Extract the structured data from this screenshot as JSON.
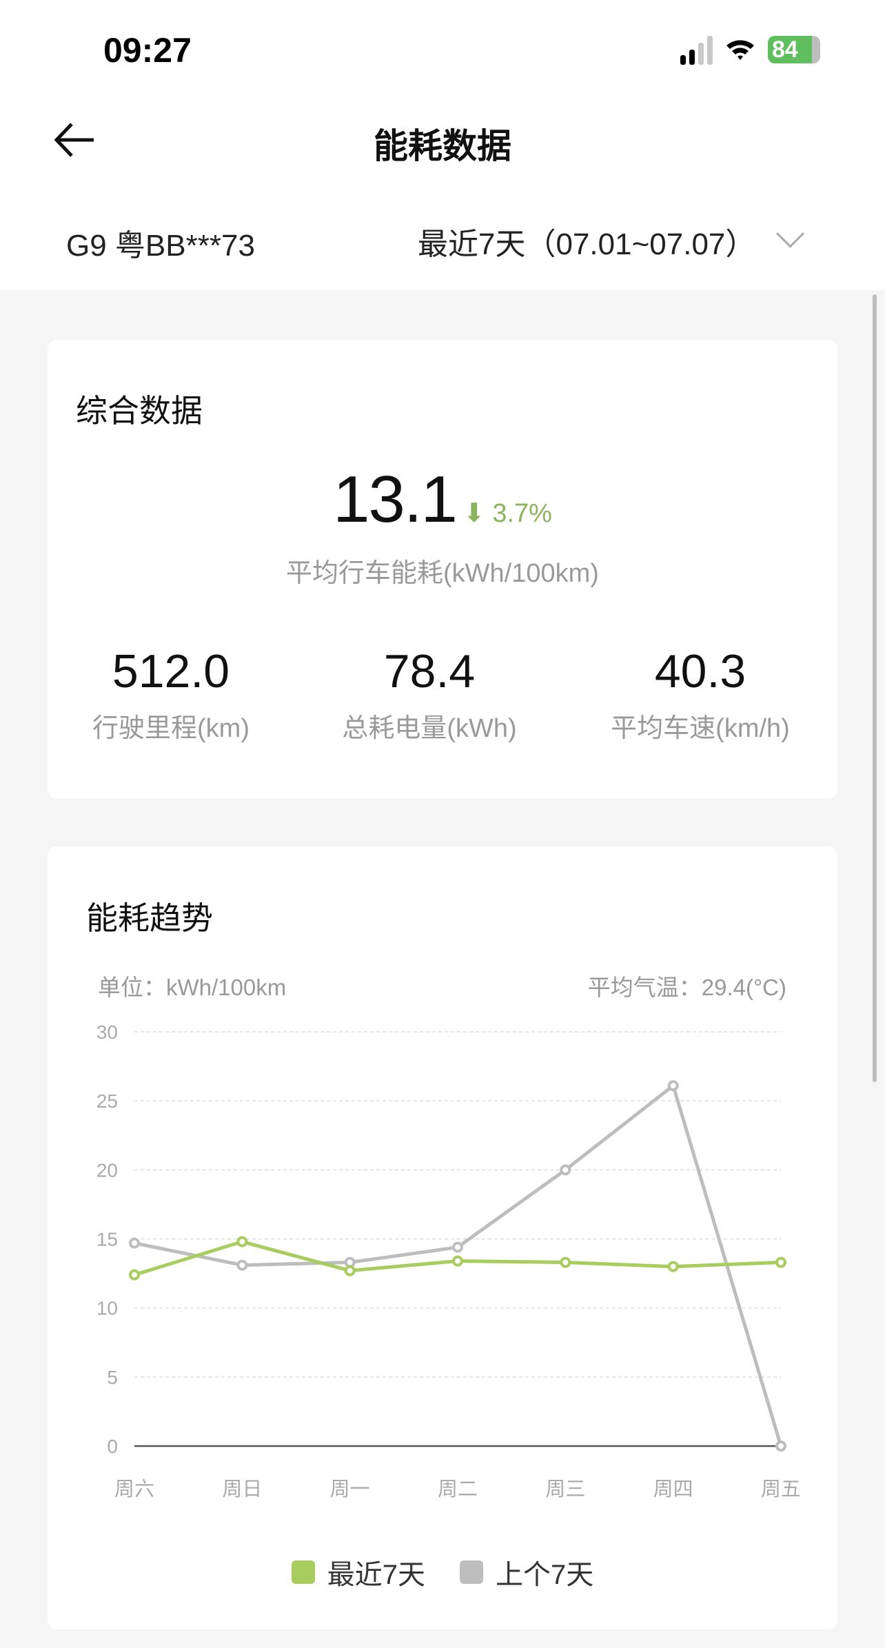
{
  "status_bar": {
    "time": "09:27",
    "battery": "84",
    "icons": [
      "signal-icon",
      "wifi-icon",
      "battery-charging-icon"
    ]
  },
  "header": {
    "title": "能耗数据",
    "back_icon": "arrow-left-icon"
  },
  "filter": {
    "vehicle": "G9 粤BB***73",
    "range": "最近7天（07.01~07.07）",
    "dropdown_icon": "chevron-down-icon"
  },
  "summary": {
    "title": "综合数据",
    "avg_consumption": "13.1",
    "change": "3.7%",
    "change_direction": "down",
    "avg_label": "平均行车能耗(kWh/100km)",
    "stats": [
      {
        "value": "512.0",
        "label": "行驶里程(km)"
      },
      {
        "value": "78.4",
        "label": "总耗电量(kWh)"
      },
      {
        "value": "40.3",
        "label": "平均车速(km/h)"
      }
    ]
  },
  "trend": {
    "title": "能耗趋势",
    "unit": "单位：kWh/100km",
    "temperature": "平均气温：29.4(°C)"
  },
  "colors": {
    "recent": "#a8cc5e",
    "previous": "#bdbdbd",
    "accent_green": "#8bb35e"
  },
  "chart_data": {
    "type": "line",
    "categories": [
      "周六",
      "周日",
      "周一",
      "周二",
      "周三",
      "周四",
      "周五"
    ],
    "ylim": [
      0,
      30
    ],
    "yticks": [
      "0",
      "5",
      "10",
      "15",
      "20",
      "25",
      "30"
    ],
    "grid": true,
    "legend_position": "bottom",
    "series": [
      {
        "name": "最近7天",
        "color": "#a8cc5e",
        "values": [
          12.4,
          14.8,
          12.7,
          13.4,
          13.3,
          13.0,
          13.3
        ]
      },
      {
        "name": "上个7天",
        "color": "#bdbdbd",
        "values": [
          14.7,
          13.1,
          13.3,
          14.4,
          20.0,
          26.1,
          0
        ]
      }
    ]
  }
}
